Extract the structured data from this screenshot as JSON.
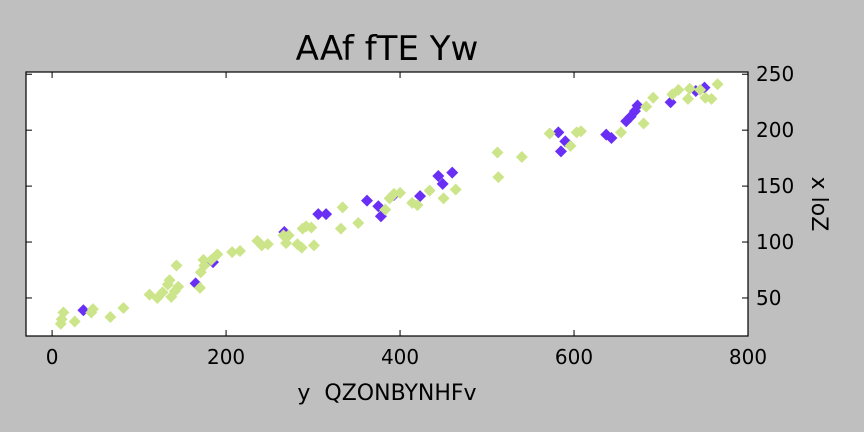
{
  "chart_data": {
    "type": "scatter",
    "title": "AAf fTE Yw",
    "xlabel": "y  QZONBYNHFv",
    "ylabel": "x loZ",
    "xlim": [
      -30,
      800
    ],
    "ylim": [
      16,
      252
    ],
    "xticks": [
      "0",
      "200",
      "400",
      "600",
      "800"
    ],
    "yticks": [
      "50",
      "100",
      "150",
      "200",
      "250"
    ],
    "ytick_side": "right",
    "grid": false,
    "marker": "diamond",
    "series": [
      {
        "color": "#6a2ff5",
        "points": [
          [
            36,
            39
          ],
          [
            165,
            63
          ],
          [
            185,
            82
          ],
          [
            267,
            109
          ],
          [
            306,
            125
          ],
          [
            315,
            125
          ],
          [
            362,
            137
          ],
          [
            375,
            132
          ],
          [
            378,
            123
          ],
          [
            393,
            142
          ],
          [
            423,
            141
          ],
          [
            444,
            159
          ],
          [
            449,
            152
          ],
          [
            460,
            162
          ],
          [
            582,
            198
          ],
          [
            585,
            181
          ],
          [
            590,
            190
          ],
          [
            637,
            196
          ],
          [
            643,
            193
          ],
          [
            660,
            208
          ],
          [
            665,
            212
          ],
          [
            670,
            217
          ],
          [
            673,
            222
          ],
          [
            711,
            225
          ],
          [
            740,
            235
          ],
          [
            750,
            238
          ]
        ]
      },
      {
        "color": "#cde58a",
        "points": [
          [
            10,
            27
          ],
          [
            11,
            31
          ],
          [
            13,
            37
          ],
          [
            26,
            29
          ],
          [
            45,
            37
          ],
          [
            47,
            40
          ],
          [
            67,
            33
          ],
          [
            82,
            41
          ],
          [
            112,
            53
          ],
          [
            121,
            50
          ],
          [
            127,
            55
          ],
          [
            133,
            62
          ],
          [
            135,
            66
          ],
          [
            137,
            51
          ],
          [
            141,
            56
          ],
          [
            143,
            79
          ],
          [
            145,
            60
          ],
          [
            170,
            59
          ],
          [
            171,
            73
          ],
          [
            174,
            84
          ],
          [
            175,
            79
          ],
          [
            183,
            84
          ],
          [
            190,
            89
          ],
          [
            207,
            91
          ],
          [
            216,
            92
          ],
          [
            236,
            101
          ],
          [
            241,
            97
          ],
          [
            248,
            98
          ],
          [
            266,
            106
          ],
          [
            269,
            99
          ],
          [
            272,
            106
          ],
          [
            282,
            98
          ],
          [
            287,
            95
          ],
          [
            288,
            112
          ],
          [
            292,
            114
          ],
          [
            298,
            113
          ],
          [
            301,
            97
          ],
          [
            332,
            112
          ],
          [
            334,
            131
          ],
          [
            352,
            117
          ],
          [
            383,
            129
          ],
          [
            388,
            139
          ],
          [
            393,
            143
          ],
          [
            400,
            144
          ],
          [
            414,
            135
          ],
          [
            420,
            133
          ],
          [
            434,
            146
          ],
          [
            450,
            139
          ],
          [
            464,
            147
          ],
          [
            512,
            180
          ],
          [
            513,
            158
          ],
          [
            540,
            176
          ],
          [
            572,
            197
          ],
          [
            596,
            186
          ],
          [
            603,
            198
          ],
          [
            608,
            199
          ],
          [
            654,
            198
          ],
          [
            680,
            206
          ],
          [
            683,
            221
          ],
          [
            691,
            229
          ],
          [
            713,
            232
          ],
          [
            720,
            236
          ],
          [
            731,
            228
          ],
          [
            733,
            237
          ],
          [
            745,
            236
          ],
          [
            751,
            229
          ],
          [
            758,
            228
          ],
          [
            765,
            241
          ]
        ]
      }
    ]
  }
}
